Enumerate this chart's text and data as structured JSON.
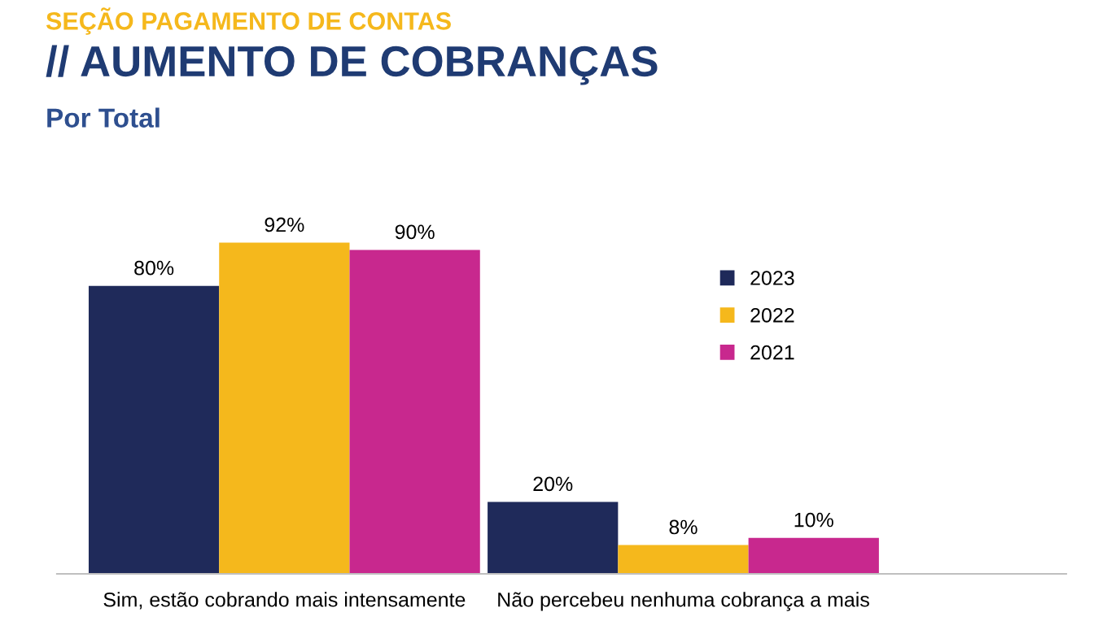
{
  "chart_data": {
    "type": "bar",
    "title": "// AUMENTO DE COBRANÇAS",
    "subtitle": "Por Total",
    "annotations": [
      "SEÇÃO PAGAMENTO DE CONTAS"
    ],
    "categories": [
      "Sim, estão cobrando mais intensamente",
      "Não percebeu nenhuma cobrança a mais"
    ],
    "series": [
      {
        "name": "2023",
        "color": "#1f2a5a",
        "values": [
          80,
          20
        ],
        "value_labels": [
          "80%",
          "20%"
        ]
      },
      {
        "name": "2022",
        "color": "#f5b81c",
        "values": [
          92,
          8
        ],
        "value_labels": [
          "92%",
          "8%"
        ]
      },
      {
        "name": "2021",
        "color": "#c8288e",
        "values": [
          90,
          10
        ],
        "value_labels": [
          "90%",
          "10%"
        ]
      }
    ],
    "legend": "top right"
  }
}
